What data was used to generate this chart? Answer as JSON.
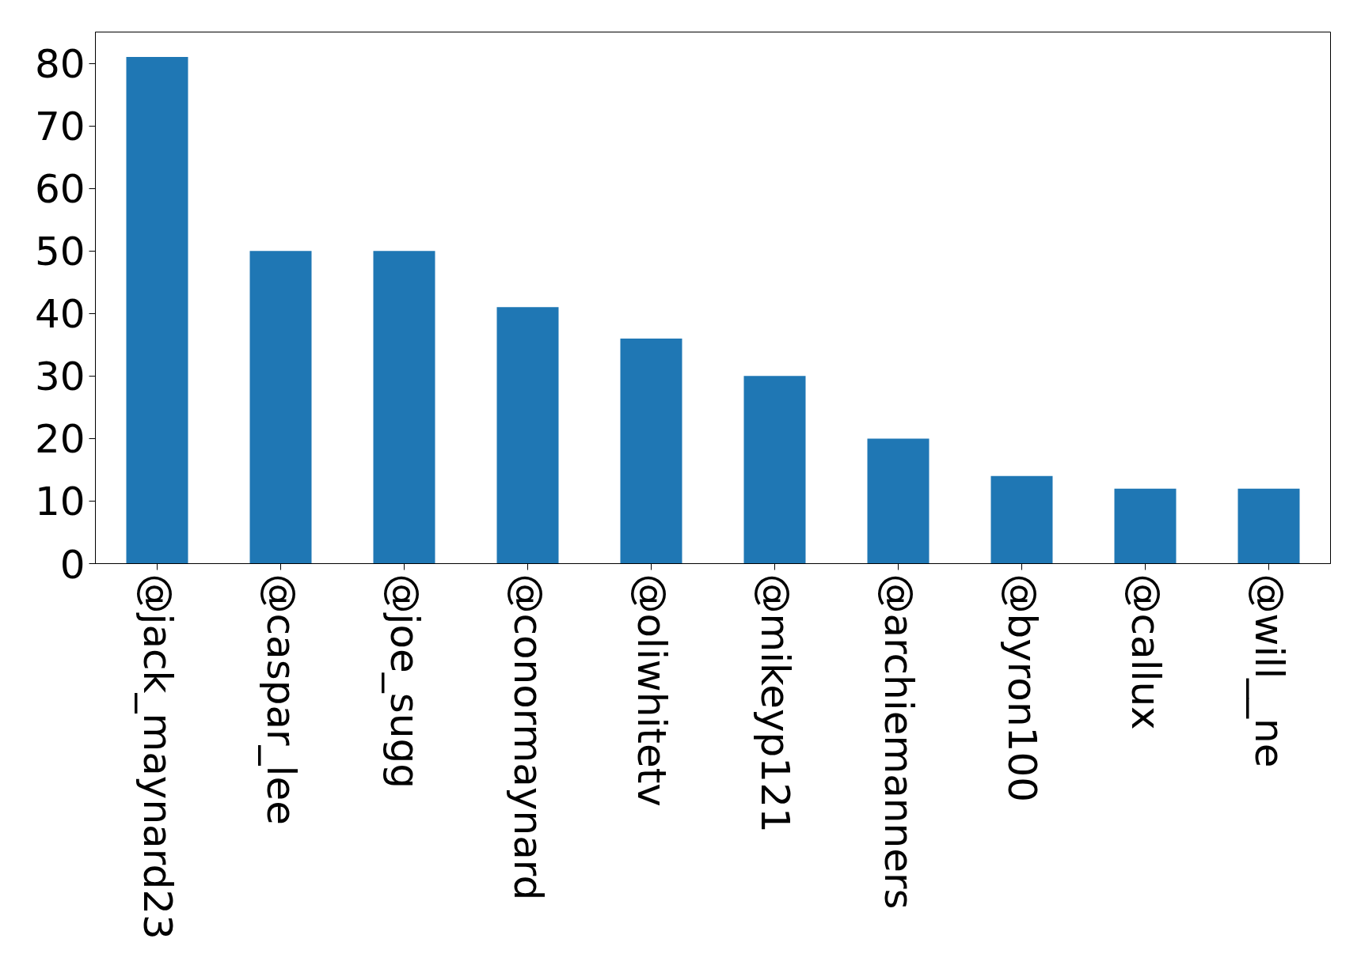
{
  "chart_data": {
    "type": "bar",
    "categories": [
      "@jack_maynard23",
      "@caspar_lee",
      "@joe_sugg",
      "@conormaynard",
      "@oliwhitetv",
      "@mikeyp121",
      "@archiemanners",
      "@byron100",
      "@callux",
      "@will__ne"
    ],
    "values": [
      81,
      50,
      50,
      41,
      36,
      30,
      20,
      14,
      12,
      12
    ],
    "color": "#1f77b4",
    "ylim": [
      0,
      85
    ],
    "yticks": [
      0,
      10,
      20,
      30,
      40,
      50,
      60,
      70,
      80
    ],
    "grid": false
  }
}
